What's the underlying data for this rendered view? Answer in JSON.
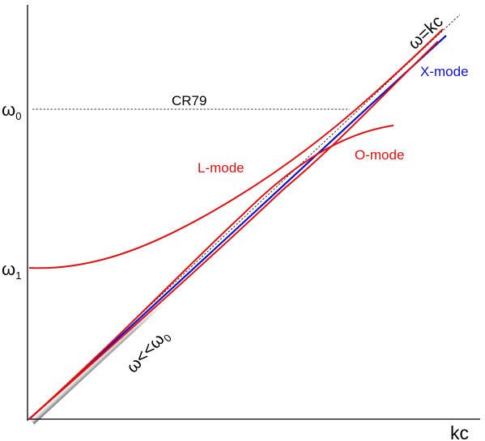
{
  "axes": {
    "x_label": "kc",
    "y_tick_upper_base": "ω",
    "y_tick_upper_sub": "0",
    "y_tick_lower_base": "ω",
    "y_tick_lower_sub": "1"
  },
  "reference_line": {
    "label": "CR79"
  },
  "curves": {
    "light_line": {
      "label": "ω=kc"
    },
    "x_mode": {
      "label": "X-mode",
      "color": "#1010d0"
    },
    "l_mode": {
      "label": "L-mode",
      "color": "#e01010"
    },
    "o_mode": {
      "label": "O-mode",
      "color": "#e01010"
    }
  },
  "low_frequency_region": {
    "label_base": "ω<<ω",
    "label_sub": "0"
  }
}
